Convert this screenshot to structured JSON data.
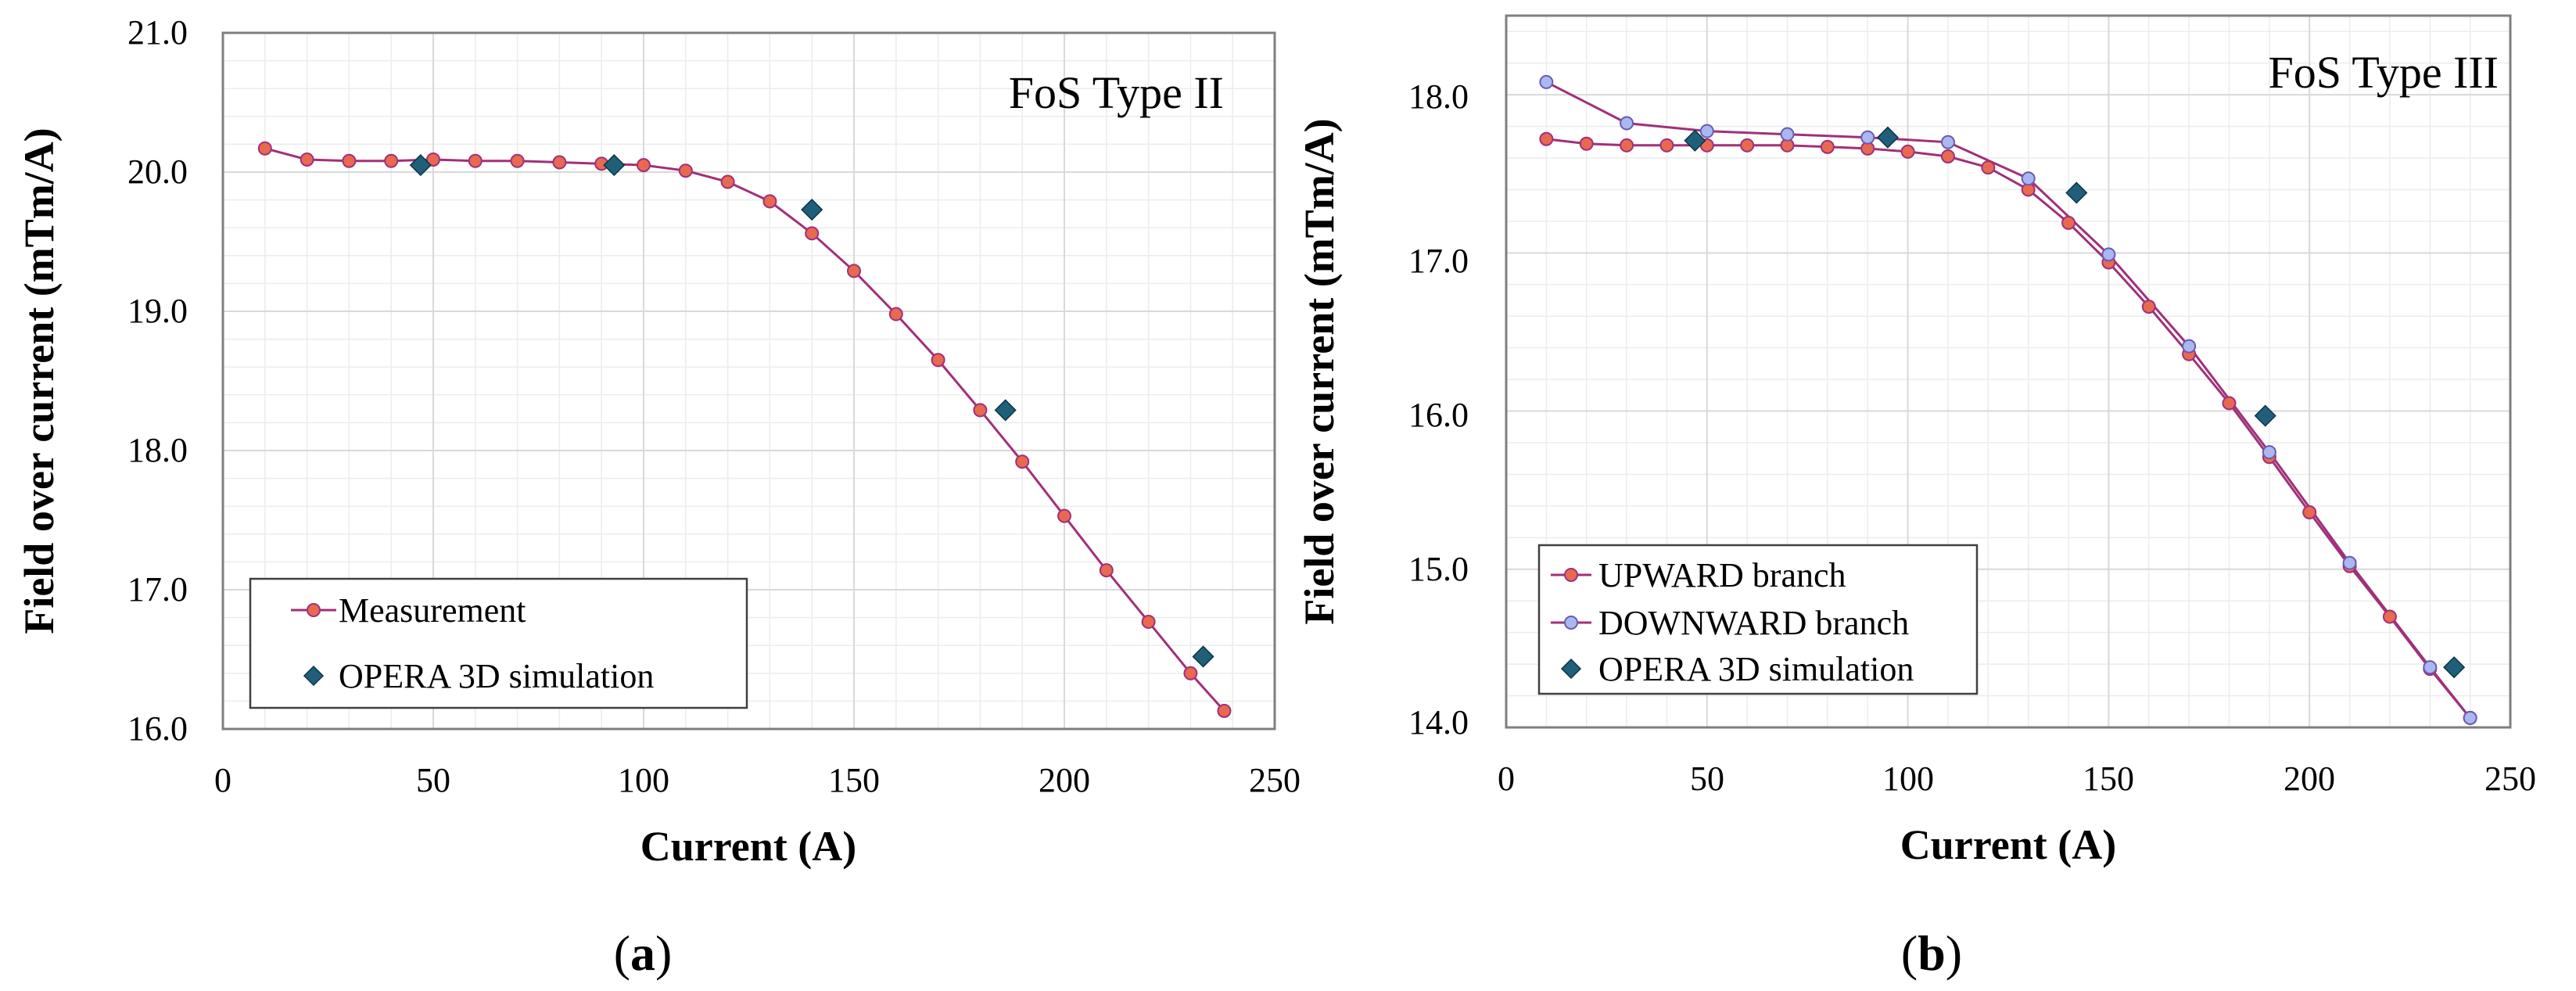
{
  "colors": {
    "line": "#a0307a",
    "marker_up": "#e8694f",
    "marker_down": "#a9b8f0",
    "marker_opera": "#1f5f7a",
    "grid": "#d9d9d9",
    "frame": "#7f7f7f"
  },
  "chart_data": [
    {
      "type": "line",
      "panel": "a",
      "caption": {
        "open": "(",
        "letter": "a",
        "close": ")"
      },
      "annotation": "FoS Type II",
      "xlabel": "Current (A)",
      "ylabel": "Field over current (mTm/A)",
      "xlim": [
        0,
        250
      ],
      "ylim": [
        16.0,
        21.0
      ],
      "xticks": [
        0,
        50,
        100,
        150,
        200,
        250
      ],
      "xtick_labels": [
        "0",
        "50",
        "100",
        "150",
        "200",
        "250"
      ],
      "yticks": [
        16,
        17,
        18,
        19,
        20,
        21
      ],
      "ytick_labels": [
        "16.0",
        "17.0",
        "18.0",
        "19.0",
        "20.0",
        "21.0"
      ],
      "grid": true,
      "legend_position": "bottom-left",
      "series": [
        {
          "name": "Measurement",
          "style": "line-marker",
          "marker_color": "#e8694f",
          "x": [
            10,
            20,
            30,
            40,
            50,
            60,
            70,
            80,
            90,
            100,
            110,
            120,
            130,
            140,
            150,
            160,
            170,
            180,
            190,
            200,
            210,
            220,
            230,
            238
          ],
          "y": [
            20.17,
            20.09,
            20.08,
            20.08,
            20.09,
            20.08,
            20.08,
            20.07,
            20.06,
            20.05,
            20.01,
            19.93,
            19.79,
            19.56,
            19.29,
            18.98,
            18.65,
            18.29,
            17.92,
            17.53,
            17.14,
            16.77,
            16.4,
            16.13
          ]
        },
        {
          "name": "OPERA 3D simulation",
          "style": "diamond",
          "marker_color": "#1f5f7a",
          "x": [
            47,
            93,
            140,
            186,
            233
          ],
          "y": [
            20.05,
            20.05,
            19.73,
            18.29,
            16.52
          ]
        }
      ]
    },
    {
      "type": "line",
      "panel": "b",
      "caption": {
        "open": "(",
        "letter": "b",
        "close": ")"
      },
      "annotation": "FoS Type III",
      "xlabel": "Current (A)",
      "ylabel": "Field over current (mTm/A)",
      "xlim": [
        0,
        250
      ],
      "ylim": [
        14.0,
        18.5
      ],
      "xticks": [
        0,
        50,
        100,
        150,
        200,
        250
      ],
      "xtick_labels": [
        "0",
        "50",
        "100",
        "150",
        "200",
        "250"
      ],
      "yticks": [
        14,
        15,
        16,
        17,
        18
      ],
      "ytick_labels": [
        "14.0",
        "15.0",
        "16.0",
        "17.0",
        "18.0"
      ],
      "grid": true,
      "legend_position": "bottom-left",
      "series": [
        {
          "name": "UPWARD branch",
          "style": "line-marker",
          "marker_color": "#e8694f",
          "x": [
            10,
            20,
            30,
            40,
            50,
            60,
            70,
            80,
            90,
            100,
            110,
            120,
            130,
            140,
            150,
            160,
            170,
            180,
            190,
            200,
            210,
            220,
            230,
            240
          ],
          "y": [
            17.72,
            17.69,
            17.68,
            17.68,
            17.68,
            17.68,
            17.68,
            17.67,
            17.66,
            17.64,
            17.61,
            17.54,
            17.4,
            17.19,
            16.94,
            16.66,
            16.36,
            16.05,
            15.71,
            15.36,
            15.02,
            14.7,
            14.37,
            14.06
          ]
        },
        {
          "name": "DOWNWARD branch",
          "style": "line-marker",
          "marker_color": "#a9b8f0",
          "x": [
            10,
            30,
            50,
            70,
            90,
            110,
            130,
            150,
            170,
            190,
            210,
            230,
            240
          ],
          "y": [
            18.08,
            17.82,
            17.77,
            17.75,
            17.73,
            17.7,
            17.47,
            16.99,
            16.41,
            15.74,
            15.04,
            14.38,
            14.06
          ]
        },
        {
          "name": "OPERA 3D simulation",
          "style": "diamond",
          "marker_color": "#1f5f7a",
          "x": [
            47,
            95,
            142,
            189,
            236
          ],
          "y": [
            17.71,
            17.73,
            17.38,
            15.97,
            14.38
          ]
        }
      ]
    }
  ]
}
